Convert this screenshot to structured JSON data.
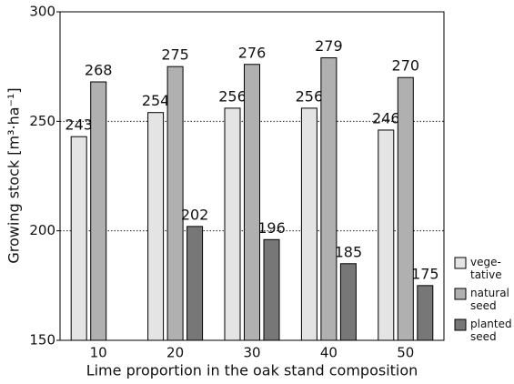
{
  "chart_data": {
    "type": "bar",
    "xlabel": "Lime proportion in the oak stand composition",
    "ylabel": "Growing stock [m³·ha⁻¹]",
    "categories": [
      "10",
      "20",
      "30",
      "40",
      "50"
    ],
    "series": [
      {
        "name": "vege-\ntative",
        "color": "#e4e4e4",
        "values": [
          243,
          254,
          256,
          256,
          246
        ]
      },
      {
        "name": "natural\nseed",
        "color": "#b0b0b0",
        "values": [
          268,
          275,
          276,
          279,
          270
        ]
      },
      {
        "name": "planted\nseed",
        "color": "#777777",
        "values": [
          null,
          202,
          196,
          185,
          175
        ]
      }
    ],
    "ylim": [
      150,
      300
    ],
    "yticks": [
      150,
      200,
      250,
      300
    ],
    "grid": true,
    "legend": "bottom-right"
  }
}
